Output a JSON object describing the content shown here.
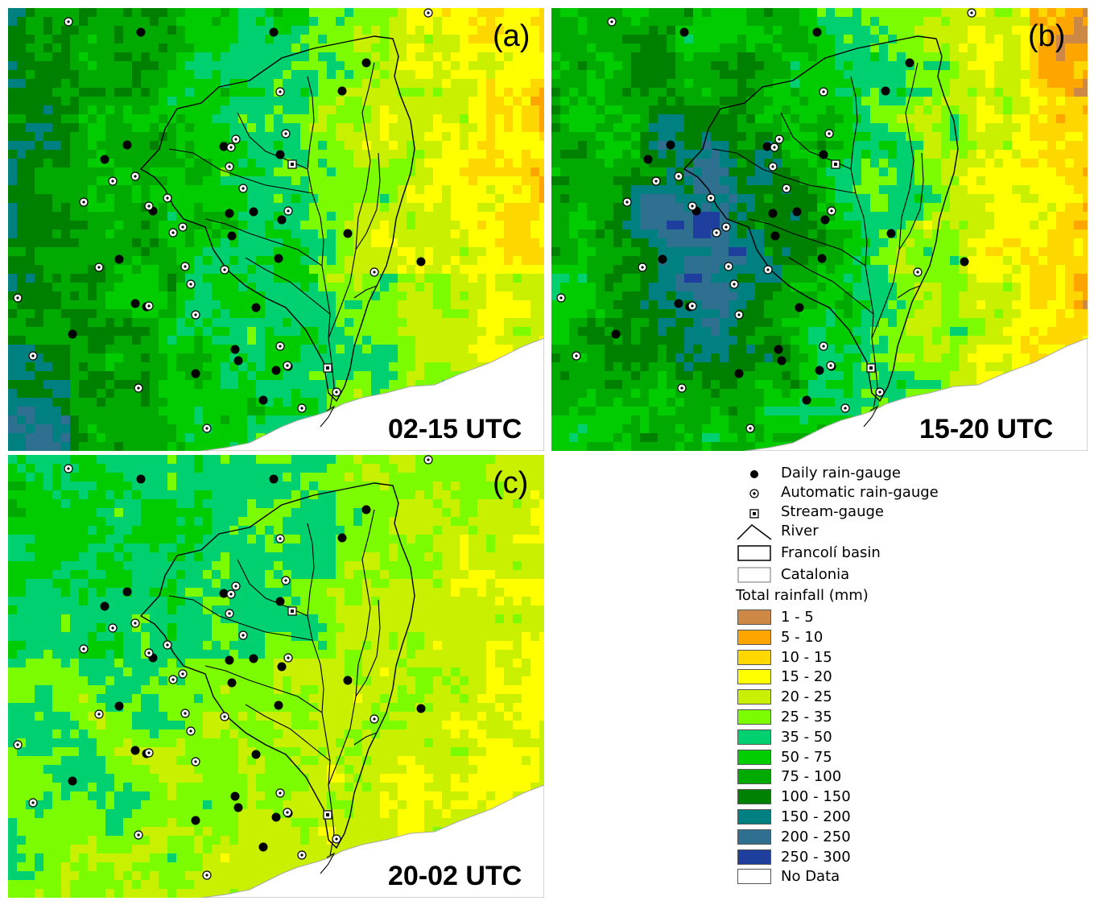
{
  "panels": [
    {
      "letter": "(a)",
      "time": "02-15 UTC"
    },
    {
      "letter": "(b)",
      "time": "15-20 UTC"
    },
    {
      "letter": "(c)",
      "time": "20-02 UTC"
    }
  ],
  "legend": {
    "symbols": [
      {
        "icon": "daily-rain-gauge-icon",
        "label": "Daily rain-gauge"
      },
      {
        "icon": "automatic-rain-gauge-icon",
        "label": "Automatic rain-gauge"
      },
      {
        "icon": "stream-gauge-icon",
        "label": "Stream-gauge"
      },
      {
        "icon": "river-icon",
        "label": "River"
      },
      {
        "icon": "basin-outline-icon",
        "label": "Francolí basin"
      },
      {
        "icon": "catalonia-outline-icon",
        "label": "Catalonia"
      }
    ],
    "title": "Total rainfall (mm)",
    "classes": [
      {
        "label": "1 - 5",
        "color": "#cc8844"
      },
      {
        "label": "5 - 10",
        "color": "#ffa500"
      },
      {
        "label": "10 - 15",
        "color": "#ffd700"
      },
      {
        "label": "15 - 20",
        "color": "#ffff00"
      },
      {
        "label": "20 - 25",
        "color": "#c8f000"
      },
      {
        "label": "25 - 35",
        "color": "#7cfc00"
      },
      {
        "label": "35 - 50",
        "color": "#00d070"
      },
      {
        "label": "50 - 75",
        "color": "#00cc00"
      },
      {
        "label": "75 - 100",
        "color": "#00aa00"
      },
      {
        "label": "100 - 150",
        "color": "#008000"
      },
      {
        "label": "150 - 200",
        "color": "#008080"
      },
      {
        "label": "200 - 250",
        "color": "#2f6f8f"
      },
      {
        "label": "250 - 300",
        "color": "#1f3f9f"
      },
      {
        "label": "No Data",
        "color": "#ffffff"
      }
    ]
  }
}
